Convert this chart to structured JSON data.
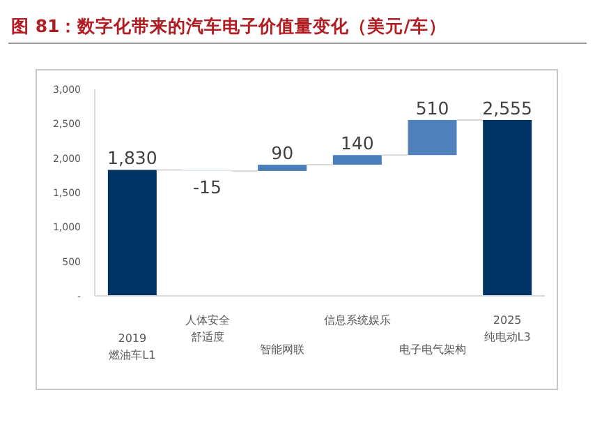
{
  "chart_data": {
    "type": "bar",
    "title": "图 81：数字化带来的汽车电子价值量变化（美元/车）",
    "categories": [
      "2019\n燃油车L1",
      "人体安全舒适度",
      "智能网联",
      "信息系统娱乐",
      "电子电气架构",
      "2025\n纯电动L3"
    ],
    "values": [
      1830,
      -15,
      90,
      140,
      510,
      2555
    ],
    "base": [
      0,
      1830,
      1815,
      1905,
      2045,
      0
    ],
    "colors": [
      "#003366",
      "#dae3f3",
      "#4a7ebb",
      "#4a7ebb",
      "#4f81bd",
      "#003366"
    ],
    "value_labels": [
      "1,830",
      "-15",
      "90",
      "140",
      "510",
      "2,555"
    ],
    "ylim": [
      0,
      3000
    ],
    "yticks": [
      {
        "value": 0,
        "label": "-"
      },
      {
        "value": 500,
        "label": "500"
      },
      {
        "value": 1000,
        "label": "1,000"
      },
      {
        "value": 1500,
        "label": "1,500"
      },
      {
        "value": 2000,
        "label": "2,000"
      },
      {
        "value": 2500,
        "label": "2,500"
      },
      {
        "value": 3000,
        "label": "3,000"
      }
    ]
  }
}
